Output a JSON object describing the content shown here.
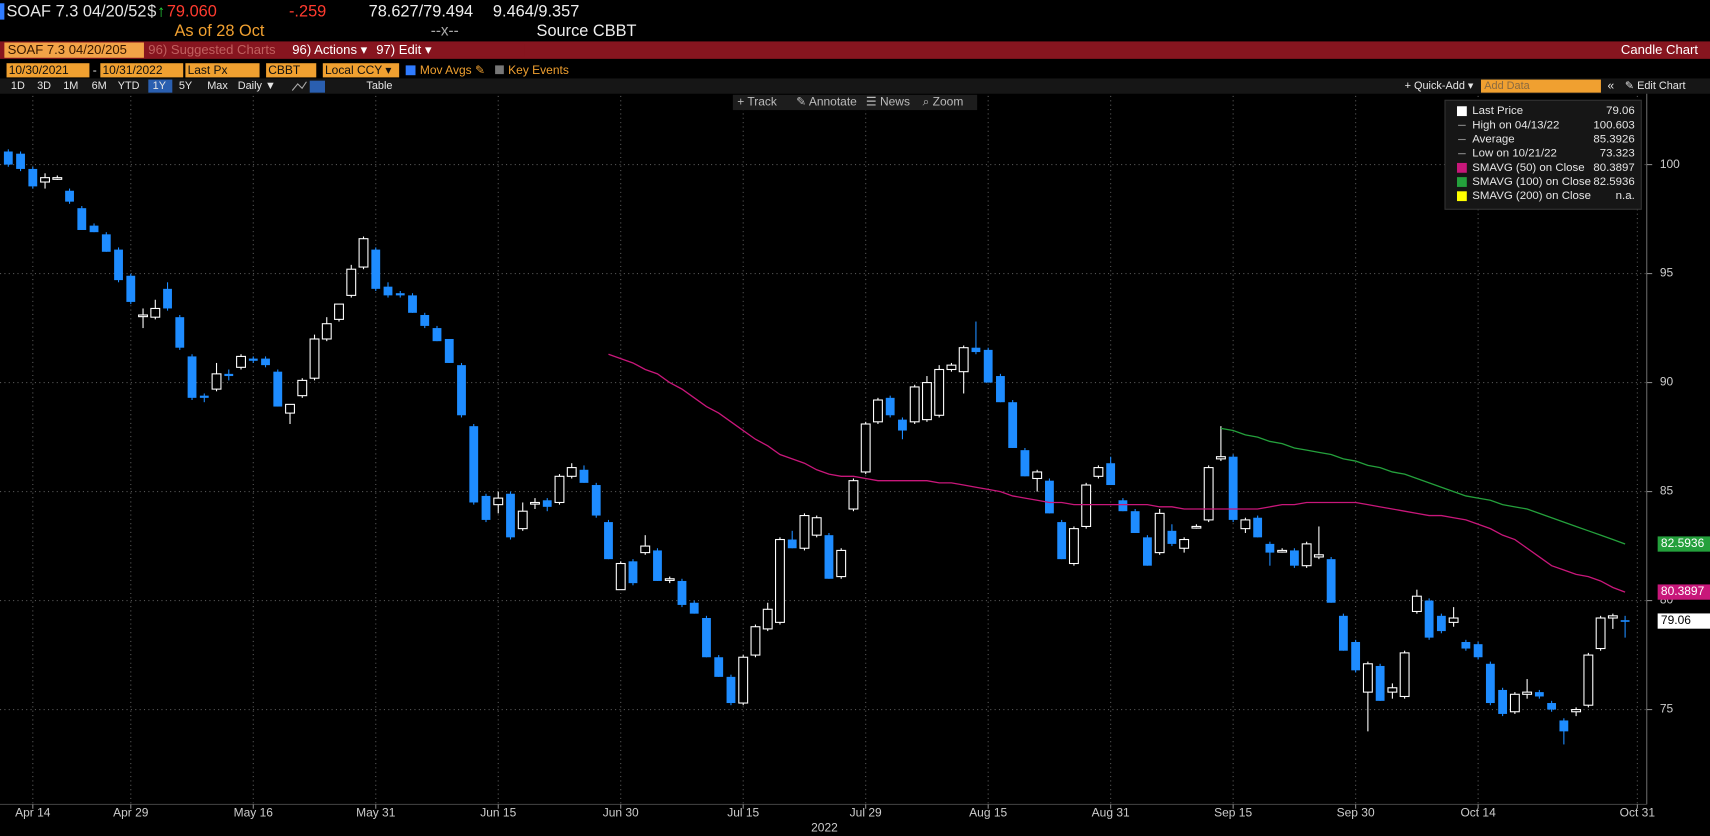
{
  "header": {
    "ticker": "SOAF 7.3 04/20/52",
    "currency": "$",
    "arrow": "↑",
    "price": "79.060",
    "change": "-.259",
    "bid_ask": "78.627/79.494",
    "yield": "9.464/9.357",
    "as_of": "As of 28 Oct",
    "separator": "--x--",
    "source": "Source CBBT"
  },
  "menu_bar": {
    "security": "SOAF 7.3 04/20/205",
    "suggested": "96) Suggested Charts",
    "actions": "96) Actions ▾",
    "edit": "97) Edit ▾",
    "title": "Candle Chart"
  },
  "settings": {
    "start": "10/30/2021",
    "dash": "-",
    "end": "10/31/2022",
    "field": "Last Px",
    "source": "CBBT",
    "currency": "Local CCY ▾",
    "mov_avgs": "Mov Avgs ✎",
    "key_events": "Key Events"
  },
  "periods": [
    "1D",
    "3D",
    "1M",
    "6M",
    "YTD",
    "1Y",
    "5Y",
    "Max",
    "Daily ▼"
  ],
  "selected_period": "1Y",
  "table": "Table",
  "quick_add": "+ Quick-Add ▾",
  "add_data": "Add Data",
  "collapse": "«",
  "edit_chart": "✎ Edit Chart",
  "toolbar": [
    "+ Track",
    "✎ Annotate",
    "☰ News",
    "⌕ Zoom"
  ],
  "chart_data": {
    "type": "candlestick",
    "xlabel": "2022",
    "up_color": "#ffffff",
    "down_color": "#1e8cff",
    "grid": true,
    "ylim": [
      71.05,
      103.15
    ],
    "yticks": [
      75,
      80,
      85,
      90,
      95,
      100
    ],
    "categories": [
      null,
      null,
      "Apr 14",
      null,
      null,
      null,
      null,
      null,
      null,
      null,
      "Apr 29",
      null,
      null,
      null,
      null,
      null,
      null,
      null,
      null,
      null,
      "May 16",
      null,
      null,
      null,
      null,
      null,
      null,
      null,
      null,
      null,
      "May 31",
      null,
      null,
      null,
      null,
      null,
      null,
      null,
      null,
      null,
      "Jun 15",
      null,
      null,
      null,
      null,
      null,
      null,
      null,
      null,
      null,
      "Jun 30",
      null,
      null,
      null,
      null,
      null,
      null,
      null,
      null,
      null,
      "Jul 15",
      null,
      null,
      null,
      null,
      null,
      null,
      null,
      null,
      null,
      "Jul 29",
      null,
      null,
      null,
      null,
      null,
      null,
      null,
      null,
      null,
      "Aug 15",
      null,
      null,
      null,
      null,
      null,
      null,
      null,
      null,
      null,
      "Aug 31",
      null,
      null,
      null,
      null,
      null,
      null,
      null,
      null,
      null,
      "Sep 15",
      null,
      null,
      null,
      null,
      null,
      null,
      null,
      null,
      null,
      "Sep 30",
      null,
      null,
      null,
      null,
      null,
      null,
      null,
      null,
      null,
      "Oct 14",
      null,
      null,
      null,
      null,
      null,
      null,
      null,
      null,
      null,
      null,
      null,
      null,
      "Oct 31"
    ],
    "ohlc": [
      [
        100.6,
        100.7,
        99.9,
        100.0
      ],
      [
        100.5,
        100.6,
        99.7,
        99.8
      ],
      [
        99.8,
        99.9,
        98.9,
        99.0
      ],
      [
        99.2,
        99.6,
        98.9,
        99.4
      ],
      [
        99.4,
        99.5,
        99.3,
        99.4
      ],
      [
        98.8,
        98.9,
        98.2,
        98.3
      ],
      [
        98.0,
        98.1,
        97.0,
        97.0
      ],
      [
        97.2,
        97.3,
        96.9,
        96.9
      ],
      [
        96.8,
        96.9,
        96.0,
        96.0
      ],
      [
        96.1,
        96.2,
        94.6,
        94.7
      ],
      [
        94.9,
        95.0,
        93.6,
        93.7
      ],
      [
        93.1,
        93.4,
        92.5,
        93.1
      ],
      [
        93.0,
        93.8,
        92.9,
        93.4
      ],
      [
        94.3,
        94.6,
        93.3,
        93.4
      ],
      [
        93.0,
        93.1,
        91.5,
        91.6
      ],
      [
        91.2,
        91.3,
        89.2,
        89.3
      ],
      [
        89.4,
        89.5,
        89.1,
        89.3
      ],
      [
        89.7,
        90.9,
        89.6,
        90.4
      ],
      [
        90.4,
        90.6,
        90.1,
        90.3
      ],
      [
        90.7,
        91.3,
        90.6,
        91.2
      ],
      [
        91.1,
        91.2,
        90.9,
        91.0
      ],
      [
        91.1,
        91.2,
        90.7,
        90.8
      ],
      [
        90.5,
        90.6,
        88.9,
        88.9
      ],
      [
        88.6,
        89.0,
        88.1,
        89.0
      ],
      [
        89.4,
        90.2,
        89.3,
        90.1
      ],
      [
        90.2,
        92.2,
        90.1,
        92.0
      ],
      [
        92.0,
        93.0,
        91.9,
        92.7
      ],
      [
        92.9,
        93.6,
        92.8,
        93.6
      ],
      [
        94.0,
        95.4,
        93.9,
        95.2
      ],
      [
        95.3,
        96.7,
        95.2,
        96.6
      ],
      [
        96.1,
        96.2,
        94.2,
        94.3
      ],
      [
        94.4,
        94.6,
        93.9,
        94.0
      ],
      [
        94.1,
        94.2,
        93.9,
        94.0
      ],
      [
        94.0,
        94.1,
        93.2,
        93.2
      ],
      [
        93.1,
        93.2,
        92.5,
        92.6
      ],
      [
        92.5,
        92.6,
        91.9,
        91.9
      ],
      [
        92.0,
        92.0,
        90.9,
        90.9
      ],
      [
        90.8,
        90.9,
        88.4,
        88.5
      ],
      [
        88.0,
        88.1,
        84.4,
        84.5
      ],
      [
        84.8,
        84.9,
        83.6,
        83.7
      ],
      [
        84.4,
        85.0,
        84.0,
        84.7
      ],
      [
        84.9,
        85.0,
        82.8,
        82.9
      ],
      [
        83.3,
        84.5,
        83.2,
        84.1
      ],
      [
        84.5,
        84.7,
        84.2,
        84.5
      ],
      [
        84.6,
        84.7,
        84.1,
        84.3
      ],
      [
        84.5,
        85.8,
        84.4,
        85.7
      ],
      [
        85.7,
        86.3,
        85.6,
        86.1
      ],
      [
        86.0,
        86.2,
        85.4,
        85.4
      ],
      [
        85.3,
        85.4,
        83.8,
        83.9
      ],
      [
        83.6,
        83.7,
        81.9,
        81.9
      ],
      [
        80.5,
        81.8,
        80.5,
        81.7
      ],
      [
        81.8,
        81.9,
        80.7,
        80.8
      ],
      [
        82.2,
        83.0,
        82.1,
        82.5
      ],
      [
        82.3,
        82.4,
        80.9,
        80.9
      ],
      [
        81.0,
        81.1,
        80.8,
        81.0
      ],
      [
        80.9,
        81.0,
        79.7,
        79.8
      ],
      [
        79.9,
        80.0,
        79.4,
        79.4
      ],
      [
        79.2,
        79.3,
        77.4,
        77.4
      ],
      [
        77.4,
        77.5,
        76.5,
        76.5
      ],
      [
        76.5,
        76.6,
        75.2,
        75.3
      ],
      [
        75.3,
        77.5,
        75.2,
        77.4
      ],
      [
        77.5,
        78.9,
        77.4,
        78.8
      ],
      [
        78.7,
        79.9,
        78.6,
        79.6
      ],
      [
        79.0,
        82.9,
        78.9,
        82.8
      ],
      [
        82.8,
        83.2,
        82.4,
        82.4
      ],
      [
        82.4,
        84.0,
        82.3,
        83.9
      ],
      [
        83.0,
        83.9,
        82.9,
        83.8
      ],
      [
        83.0,
        83.1,
        81.0,
        81.0
      ],
      [
        81.1,
        82.4,
        81.0,
        82.3
      ],
      [
        84.2,
        85.6,
        84.1,
        85.5
      ],
      [
        85.9,
        88.2,
        85.8,
        88.1
      ],
      [
        88.2,
        89.3,
        88.1,
        89.2
      ],
      [
        89.3,
        89.4,
        88.4,
        88.5
      ],
      [
        88.3,
        88.4,
        87.4,
        87.8
      ],
      [
        88.2,
        89.9,
        88.1,
        89.8
      ],
      [
        88.3,
        90.3,
        88.2,
        90.0
      ],
      [
        88.5,
        90.8,
        88.4,
        90.6
      ],
      [
        90.6,
        90.9,
        90.5,
        90.8
      ],
      [
        90.5,
        91.7,
        89.5,
        91.6
      ],
      [
        91.6,
        92.8,
        91.3,
        91.4
      ],
      [
        91.5,
        91.6,
        90.0,
        90.0
      ],
      [
        90.3,
        90.4,
        89.1,
        89.1
      ],
      [
        89.1,
        89.2,
        87.0,
        87.0
      ],
      [
        86.9,
        87.0,
        85.7,
        85.7
      ],
      [
        85.6,
        86.0,
        85.0,
        85.9
      ],
      [
        85.5,
        85.6,
        84.0,
        84.0
      ],
      [
        83.6,
        83.7,
        81.9,
        81.9
      ],
      [
        81.7,
        83.4,
        81.6,
        83.3
      ],
      [
        83.4,
        85.4,
        83.3,
        85.3
      ],
      [
        85.7,
        86.2,
        85.6,
        86.1
      ],
      [
        86.3,
        86.6,
        85.3,
        85.3
      ],
      [
        84.6,
        84.7,
        84.1,
        84.1
      ],
      [
        84.1,
        84.2,
        83.1,
        83.1
      ],
      [
        82.9,
        83.0,
        81.6,
        81.6
      ],
      [
        82.2,
        84.2,
        82.1,
        84.0
      ],
      [
        83.2,
        83.5,
        82.5,
        82.6
      ],
      [
        82.4,
        82.9,
        82.2,
        82.8
      ],
      [
        83.4,
        83.5,
        83.3,
        83.4
      ],
      [
        83.7,
        86.2,
        83.6,
        86.1
      ],
      [
        86.5,
        88.0,
        86.4,
        86.6
      ],
      [
        86.6,
        86.7,
        83.6,
        83.7
      ],
      [
        83.3,
        83.8,
        83.1,
        83.7
      ],
      [
        83.8,
        83.9,
        82.9,
        82.9
      ],
      [
        82.6,
        82.7,
        81.6,
        82.2
      ],
      [
        82.3,
        82.4,
        82.2,
        82.3
      ],
      [
        82.3,
        82.4,
        81.5,
        81.6
      ],
      [
        81.6,
        82.7,
        81.5,
        82.6
      ],
      [
        82.0,
        83.4,
        81.9,
        82.1
      ],
      [
        81.9,
        82.0,
        79.9,
        79.9
      ],
      [
        79.3,
        79.4,
        77.7,
        77.7
      ],
      [
        78.1,
        78.2,
        76.7,
        76.8
      ],
      [
        75.8,
        77.2,
        74.0,
        77.1
      ],
      [
        77.0,
        77.1,
        75.4,
        75.4
      ],
      [
        75.8,
        76.2,
        75.5,
        76.0
      ],
      [
        75.6,
        77.7,
        75.5,
        77.6
      ],
      [
        79.5,
        80.5,
        79.4,
        80.2
      ],
      [
        80.0,
        80.1,
        78.2,
        78.3
      ],
      [
        79.3,
        79.4,
        78.5,
        78.6
      ],
      [
        79.0,
        79.7,
        78.8,
        79.2
      ],
      [
        78.1,
        78.2,
        77.7,
        77.8
      ],
      [
        78.0,
        78.1,
        77.3,
        77.4
      ],
      [
        77.1,
        77.2,
        75.2,
        75.3
      ],
      [
        75.9,
        76.0,
        74.7,
        74.8
      ],
      [
        74.9,
        75.8,
        74.8,
        75.7
      ],
      [
        75.7,
        76.4,
        75.5,
        75.8
      ],
      [
        75.8,
        75.9,
        75.5,
        75.6
      ],
      [
        75.3,
        75.4,
        74.9,
        75.0
      ],
      [
        74.5,
        74.6,
        73.4,
        74.0
      ],
      [
        74.9,
        75.1,
        74.7,
        75.0
      ],
      [
        75.2,
        77.6,
        75.1,
        77.5
      ],
      [
        77.8,
        79.3,
        77.7,
        79.2
      ],
      [
        79.2,
        79.4,
        78.7,
        79.3
      ],
      [
        79.1,
        79.3,
        78.3,
        79.06
      ],
      null
    ],
    "series": [
      {
        "name": "SMAVG (50)  on Close",
        "color": "#c8177a",
        "values": [
          null,
          null,
          null,
          null,
          null,
          null,
          null,
          null,
          null,
          null,
          null,
          null,
          null,
          null,
          null,
          null,
          null,
          null,
          null,
          null,
          null,
          null,
          null,
          null,
          null,
          null,
          null,
          null,
          null,
          null,
          null,
          null,
          null,
          null,
          null,
          null,
          null,
          null,
          null,
          null,
          null,
          null,
          null,
          null,
          null,
          null,
          null,
          null,
          null,
          91.3,
          91.1,
          90.9,
          90.6,
          90.4,
          90.0,
          89.7,
          89.3,
          88.9,
          88.6,
          88.2,
          87.8,
          87.4,
          87.1,
          86.7,
          86.5,
          86.3,
          86.0,
          85.8,
          85.7,
          85.7,
          85.6,
          85.5,
          85.5,
          85.5,
          85.5,
          85.5,
          85.4,
          85.4,
          85.3,
          85.2,
          85.1,
          85.0,
          84.8,
          84.7,
          84.6,
          84.5,
          84.5,
          84.4,
          84.4,
          84.4,
          84.4,
          84.4,
          84.4,
          84.4,
          84.3,
          84.3,
          84.2,
          84.2,
          84.2,
          84.2,
          84.2,
          84.2,
          84.2,
          84.3,
          84.4,
          84.4,
          84.5,
          84.5,
          84.5,
          84.5,
          84.5,
          84.4,
          84.3,
          84.2,
          84.1,
          84.0,
          83.9,
          83.9,
          83.8,
          83.7,
          83.5,
          83.3,
          83.0,
          82.8,
          82.4,
          82.0,
          81.6,
          81.4,
          81.2,
          81.1,
          80.9,
          80.6,
          80.3897,
          null
        ]
      },
      {
        "name": "SMAVG (100)  on Close",
        "color": "#24a03c",
        "values": [
          null,
          null,
          null,
          null,
          null,
          null,
          null,
          null,
          null,
          null,
          null,
          null,
          null,
          null,
          null,
          null,
          null,
          null,
          null,
          null,
          null,
          null,
          null,
          null,
          null,
          null,
          null,
          null,
          null,
          null,
          null,
          null,
          null,
          null,
          null,
          null,
          null,
          null,
          null,
          null,
          null,
          null,
          null,
          null,
          null,
          null,
          null,
          null,
          null,
          null,
          null,
          null,
          null,
          null,
          null,
          null,
          null,
          null,
          null,
          null,
          null,
          null,
          null,
          null,
          null,
          null,
          null,
          null,
          null,
          null,
          null,
          null,
          null,
          null,
          null,
          null,
          null,
          null,
          null,
          null,
          null,
          null,
          null,
          null,
          null,
          null,
          null,
          null,
          null,
          null,
          null,
          null,
          null,
          null,
          null,
          null,
          null,
          null,
          null,
          87.9,
          87.8,
          87.6,
          87.5,
          87.3,
          87.2,
          87.0,
          86.9,
          86.8,
          86.7,
          86.5,
          86.4,
          86.2,
          86.1,
          85.9,
          85.8,
          85.6,
          85.4,
          85.2,
          85.0,
          84.8,
          84.7,
          84.6,
          84.4,
          84.3,
          84.2,
          84.0,
          83.8,
          83.6,
          83.4,
          83.2,
          83.0,
          82.8,
          82.5936,
          null
        ]
      }
    ],
    "stats": [
      {
        "label": "Last Price",
        "color": "#ffffff"
      },
      {
        "label": "High on 04/13/22",
        "value": 100.603
      },
      {
        "label": "Average",
        "value": 85.3926
      },
      {
        "label": "Low on 10/21/22",
        "value": 73.323
      }
    ],
    "extra_legend": {
      "name": "SMAVG (200)  on Close",
      "color": "#ffff00",
      "value": "n.a."
    }
  }
}
